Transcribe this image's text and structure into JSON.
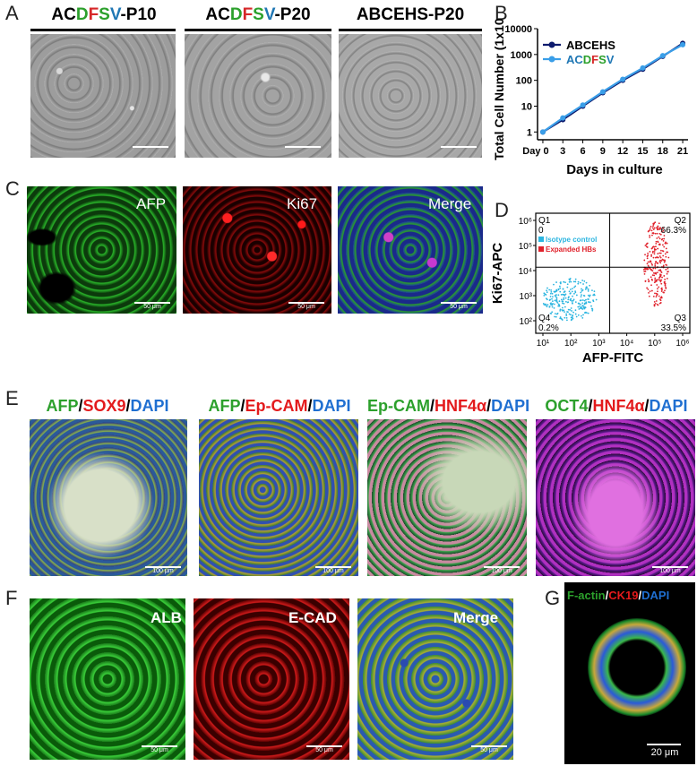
{
  "panels": {
    "A": {
      "letter": "A",
      "titles": [
        {
          "parts": [
            {
              "t": "AC",
              "c": "#000000"
            },
            {
              "t": "D",
              "c": "#2ca02c"
            },
            {
              "t": "F",
              "c": "#d62728"
            },
            {
              "t": "S",
              "c": "#2ca02c"
            },
            {
              "t": "V",
              "c": "#1f77b4"
            },
            {
              "t": "-P10",
              "c": "#000000"
            }
          ]
        },
        {
          "parts": [
            {
              "t": "AC",
              "c": "#000000"
            },
            {
              "t": "D",
              "c": "#2ca02c"
            },
            {
              "t": "F",
              "c": "#d62728"
            },
            {
              "t": "S",
              "c": "#2ca02c"
            },
            {
              "t": "V",
              "c": "#1f77b4"
            },
            {
              "t": "-P20",
              "c": "#000000"
            }
          ]
        },
        {
          "parts": [
            {
              "t": "ABCEHS-P20",
              "c": "#000000"
            }
          ]
        }
      ]
    },
    "B": {
      "letter": "B"
    },
    "C": {
      "letter": "C",
      "labels": [
        "AFP",
        "Ki67",
        "Merge"
      ],
      "scale": "50 μm"
    },
    "D": {
      "letter": "D"
    },
    "E": {
      "letter": "E",
      "titles": [
        {
          "parts": [
            {
              "t": "AFP",
              "c": "#2ca02c"
            },
            {
              "t": "/",
              "c": "#000000"
            },
            {
              "t": "SOX9",
              "c": "#e31a1c"
            },
            {
              "t": "/",
              "c": "#000000"
            },
            {
              "t": "DAPI",
              "c": "#1f6fd1"
            }
          ]
        },
        {
          "parts": [
            {
              "t": "AFP",
              "c": "#2ca02c"
            },
            {
              "t": "/",
              "c": "#000000"
            },
            {
              "t": "Ep-CAM",
              "c": "#e31a1c"
            },
            {
              "t": "/",
              "c": "#000000"
            },
            {
              "t": "DAPI",
              "c": "#1f6fd1"
            }
          ]
        },
        {
          "parts": [
            {
              "t": "Ep-CAM",
              "c": "#2ca02c"
            },
            {
              "t": "/",
              "c": "#000000"
            },
            {
              "t": "HNF4α",
              "c": "#e31a1c"
            },
            {
              "t": "/",
              "c": "#000000"
            },
            {
              "t": "DAPI",
              "c": "#1f6fd1"
            }
          ]
        },
        {
          "parts": [
            {
              "t": "OCT4",
              "c": "#2ca02c"
            },
            {
              "t": "/",
              "c": "#000000"
            },
            {
              "t": "HNF4α",
              "c": "#e31a1c"
            },
            {
              "t": "/",
              "c": "#000000"
            },
            {
              "t": "DAPI",
              "c": "#1f6fd1"
            }
          ]
        }
      ],
      "scale": "100 μm"
    },
    "F": {
      "letter": "F",
      "labels": [
        "ALB",
        "E-CAD",
        "Merge"
      ],
      "scale": "50 μm"
    },
    "G": {
      "letter": "G",
      "title": {
        "parts": [
          {
            "t": "F-actin",
            "c": "#2ca02c"
          },
          {
            "t": "/",
            "c": "#ffffff"
          },
          {
            "t": "CK19",
            "c": "#e31a1c"
          },
          {
            "t": "/",
            "c": "#ffffff"
          },
          {
            "t": "DAPI",
            "c": "#1f6fd1"
          }
        ]
      },
      "scale": "20 μm"
    }
  },
  "chart_data": [
    {
      "type": "line",
      "ylabel": "Total Cell Number (1x10⁵)",
      "xlabel": "Days in culture",
      "x_tick_labels": [
        "Day 0",
        "3",
        "6",
        "9",
        "12",
        "15",
        "18",
        "21"
      ],
      "x": [
        0,
        3,
        6,
        9,
        12,
        15,
        18,
        21
      ],
      "yscale": "log",
      "ylim": [
        0.5,
        10000
      ],
      "y_tick_labels": [
        "1",
        "10",
        "100",
        "1000",
        "10000"
      ],
      "legend_position": "top-left",
      "series": [
        {
          "name": "ABCEHS",
          "color": "#0d1b6e",
          "values": [
            1,
            3,
            10,
            33,
            100,
            270,
            850,
            2700
          ]
        },
        {
          "name": "ACDFSV",
          "name_parts": [
            {
              "t": "AC",
              "c": "#1f77b4"
            },
            {
              "t": "D",
              "c": "#2ca02c"
            },
            {
              "t": "F",
              "c": "#d62728"
            },
            {
              "t": "S",
              "c": "#2ca02c"
            },
            {
              "t": "V",
              "c": "#1f77b4"
            }
          ],
          "color": "#3a9ee8",
          "values": [
            1,
            3.5,
            11,
            36,
            110,
            300,
            900,
            2400
          ]
        }
      ]
    },
    {
      "type": "scatter",
      "xlabel": "AFP-FITC",
      "ylabel": "Ki67-APC",
      "xscale": "log",
      "yscale": "log",
      "x_tick_labels": [
        "10¹",
        "10²",
        "10³",
        "10⁴",
        "10⁵",
        "10⁶"
      ],
      "y_tick_labels": [
        "10²",
        "10³",
        "10⁴",
        "10⁵",
        "10⁶"
      ],
      "quadrants": [
        {
          "name": "Q1",
          "value": "0"
        },
        {
          "name": "Q2",
          "value": "66.3%"
        },
        {
          "name": "Q3",
          "value": "33.5%"
        },
        {
          "name": "Q4",
          "value": "0.2%"
        }
      ],
      "series": [
        {
          "name": "Isotype control",
          "color": "#2bb5e0"
        },
        {
          "name": "Expanded HBs",
          "color": "#e0202a"
        }
      ]
    }
  ]
}
